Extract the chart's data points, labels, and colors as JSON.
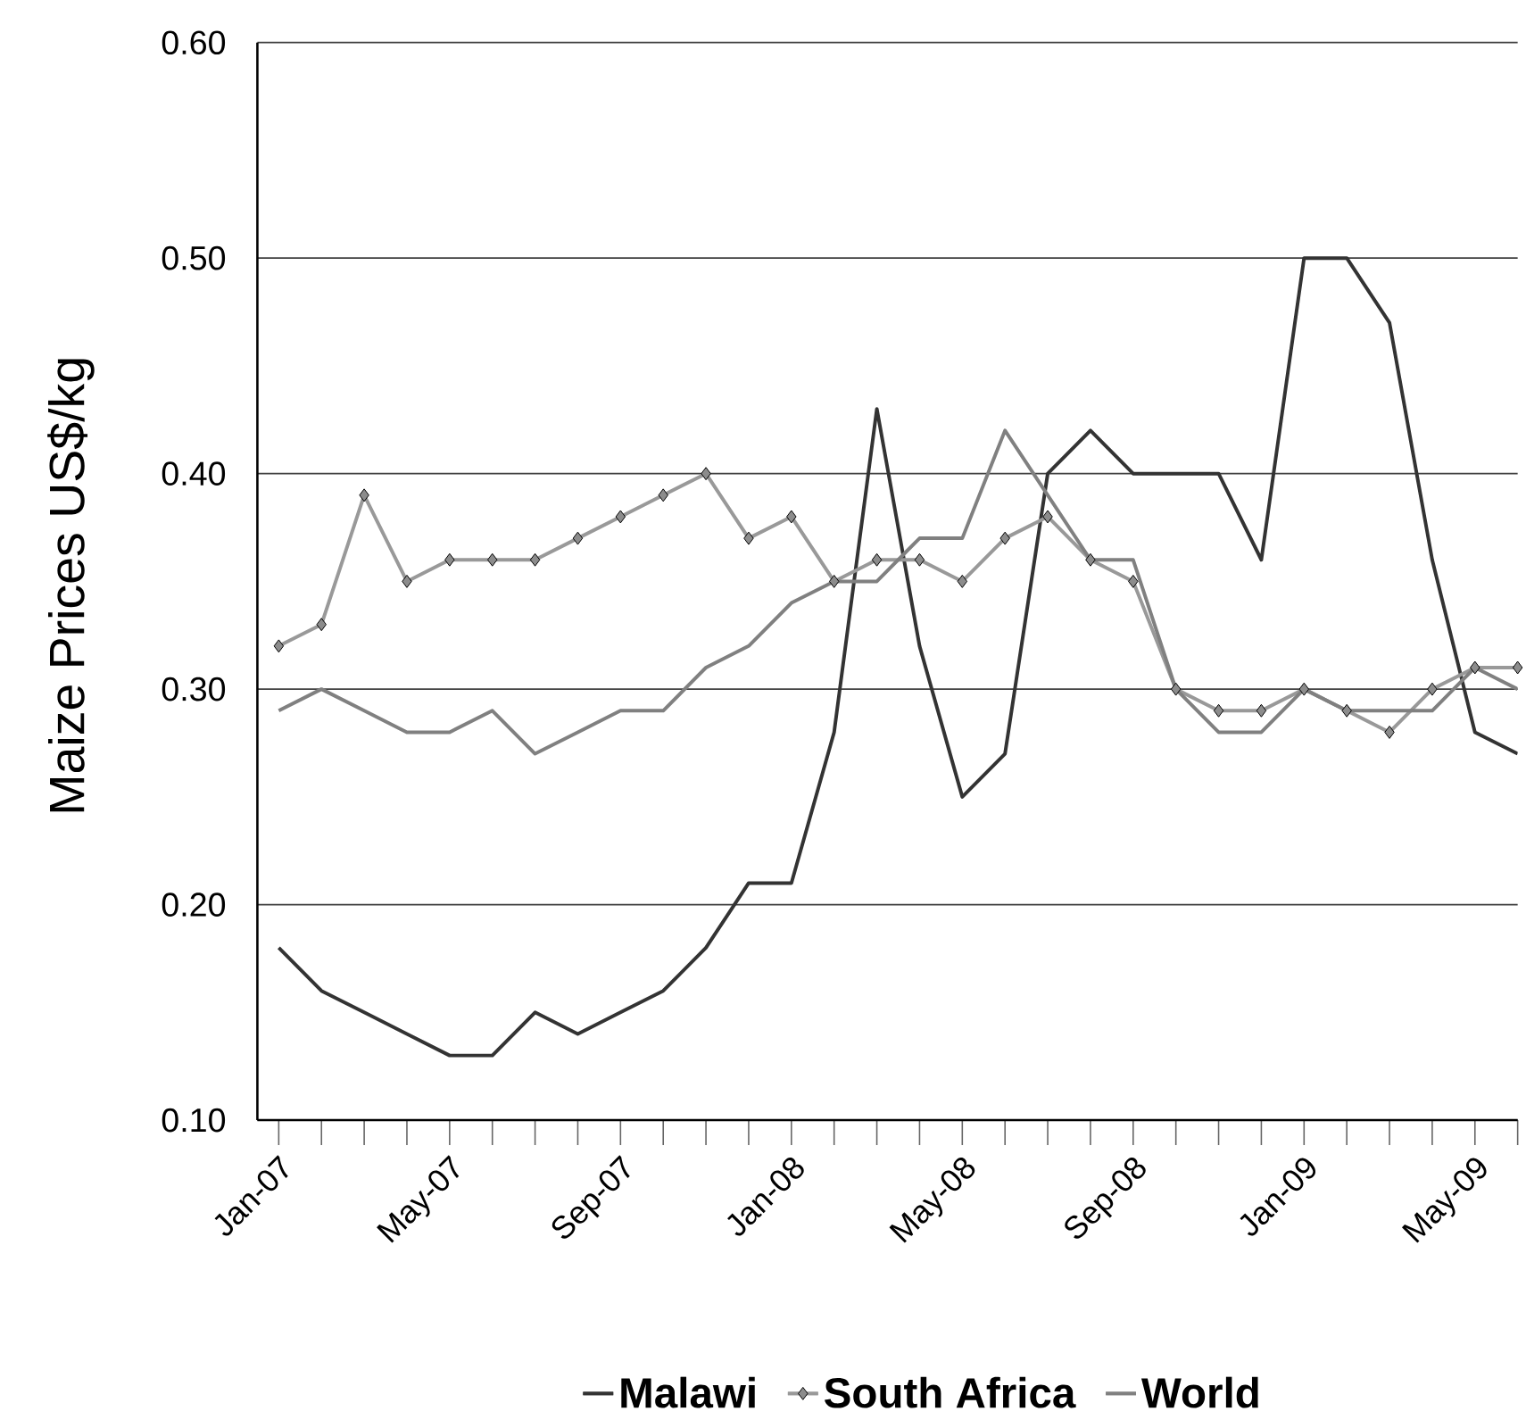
{
  "chart_data": {
    "type": "line",
    "ylabel": "Maize Prices US$/kg",
    "categories": [
      "Jan-07",
      null,
      null,
      null,
      "May-07",
      null,
      null,
      null,
      "Sep-07",
      null,
      null,
      null,
      "Jan-08",
      null,
      null,
      null,
      "May-08",
      null,
      null,
      null,
      "Sep-08",
      null,
      null,
      null,
      "Jan-09",
      null,
      null,
      null,
      "May-09",
      null
    ],
    "series": [
      {
        "name": "Malawi",
        "color": "#333333",
        "marker": "none",
        "values": [
          0.18,
          0.16,
          0.15,
          0.14,
          0.13,
          0.13,
          0.15,
          0.14,
          0.15,
          0.16,
          0.18,
          0.21,
          0.21,
          0.28,
          0.43,
          0.32,
          0.25,
          0.27,
          0.4,
          0.42,
          0.4,
          0.4,
          0.4,
          0.36,
          0.5,
          0.5,
          0.47,
          0.36,
          0.28,
          0.27
        ]
      },
      {
        "name": "South Africa",
        "color": "#999999",
        "marker": "diamond",
        "values": [
          0.32,
          0.33,
          0.39,
          0.35,
          0.36,
          0.36,
          0.36,
          0.37,
          0.38,
          0.39,
          0.4,
          0.37,
          0.38,
          0.35,
          0.36,
          0.36,
          0.35,
          0.37,
          0.38,
          0.36,
          0.35,
          0.3,
          0.29,
          0.29,
          0.3,
          0.29,
          0.28,
          0.3,
          0.31,
          0.31
        ]
      },
      {
        "name": "World",
        "color": "#808080",
        "marker": "none",
        "values": [
          0.29,
          0.3,
          0.29,
          0.28,
          0.28,
          0.29,
          0.27,
          0.28,
          0.29,
          0.29,
          0.31,
          0.32,
          0.34,
          0.35,
          0.35,
          0.37,
          0.37,
          0.42,
          0.39,
          0.36,
          0.36,
          0.3,
          0.28,
          0.28,
          0.3,
          0.29,
          0.29,
          0.29,
          0.31,
          0.3
        ]
      }
    ],
    "ylim": [
      0.1,
      0.6
    ],
    "yticks": [
      {
        "value": 0.1,
        "label": "0.10"
      },
      {
        "value": 0.2,
        "label": "0.20"
      },
      {
        "value": 0.3,
        "label": "0.30"
      },
      {
        "value": 0.4,
        "label": "0.40"
      },
      {
        "value": 0.5,
        "label": "0.50"
      },
      {
        "value": 0.6,
        "label": "0.60"
      }
    ],
    "grid": "y",
    "legend": "bottom",
    "line_style": "solid"
  }
}
